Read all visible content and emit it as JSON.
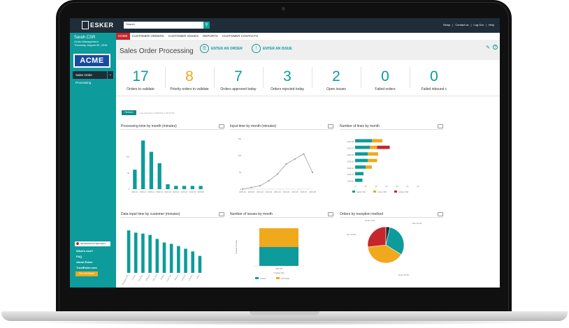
{
  "topbar": {
    "logo": "ESKER",
    "search_placeholder": "Search",
    "links": [
      "Setup",
      "Contact us",
      "Log Out",
      "Help"
    ]
  },
  "sidebar": {
    "user_name": "Sarah CSR",
    "role": "Order Management",
    "date": "Thursday, August 04, 2016",
    "company": "ACME",
    "selector": "Sales Order Processing",
    "infosec": "INFORMATION SECURITY",
    "links": [
      "What's new?",
      "FAQ",
      "About Esker",
      "TrustEsker.com"
    ],
    "feedback": "Give feedback"
  },
  "nav": {
    "tabs": [
      "HOME",
      "CUSTOMER ORDERS",
      "CUSTOMER ISSUES",
      "REPORTS",
      "CUSTOMER CONTACTS"
    ]
  },
  "header": {
    "title": "Sales Order Processing",
    "enter_order": "ENTER AN ORDER",
    "enter_issue": "ENTER AN ISSUE"
  },
  "kpis": [
    {
      "value": "17",
      "label": "Orders to validate",
      "color": "#0d9b9b"
    },
    {
      "value": "8",
      "label": "Priority orders to validate",
      "color": "#f0a81c"
    },
    {
      "value": "7",
      "label": "Orders approved today",
      "color": "#0d9b9b"
    },
    {
      "value": "3",
      "label": "Orders rejected today",
      "color": "#0d9b9b"
    },
    {
      "value": "2",
      "label": "Open issues",
      "color": "#0d9b9b"
    },
    {
      "value": "0",
      "label": "Failed orders",
      "color": "#0d9b9b"
    },
    {
      "value": "0",
      "label": "Failed inbound c",
      "color": "#0d9b9b"
    }
  ],
  "refresh": {
    "label": "Refresh",
    "last_refresh": "Last refreshed on 8/4/2016, 2:46:32 PM"
  },
  "chart_data": [
    {
      "type": "bar",
      "title": "Processing time by month (minutes)",
      "categories": [
        "2015-10",
        "2015-11",
        "2015-12",
        "2016-01",
        "2016-02",
        "2016-03",
        "2016-04",
        "2016-05",
        "2016-06"
      ],
      "values": [
        60,
        150,
        115,
        80,
        15,
        10,
        10,
        10,
        10
      ],
      "yticks": [
        0,
        50,
        100
      ],
      "ylim": [
        0,
        155
      ],
      "color": "#0d9b9b"
    },
    {
      "type": "line",
      "title": "Input time by month (minutes)",
      "categories": [
        "2015-12",
        "2016-01",
        "2016-02",
        "2016-03",
        "2016-04",
        "2016-05",
        "2016-06",
        "2016-07",
        "2016-08"
      ],
      "values": [
        0,
        5,
        10,
        25,
        45,
        75,
        90,
        105,
        50
      ],
      "yticks": [
        0,
        50,
        100,
        150
      ],
      "ylim": [
        0,
        150
      ],
      "color": "#9e9e9e"
    },
    {
      "type": "bar",
      "orientation": "horizontal",
      "stacked": true,
      "title": "Number of lines by month",
      "categories": [
        "2016-08",
        "2016-07",
        "2016-06",
        "2016-05",
        "2016-04",
        "2016-03",
        "2016-02"
      ],
      "series": [
        {
          "name": "Sarah CSR",
          "color": "#0d9b9b",
          "values": [
            16,
            14,
            12,
            12,
            10,
            8,
            7
          ]
        },
        {
          "name": "Julien CSR",
          "color": "#f0a81c",
          "values": [
            10,
            7,
            10,
            9,
            6,
            0,
            0
          ]
        },
        {
          "name": "Juliette CSR",
          "color": "#c7252c",
          "values": [
            0,
            12,
            0,
            0,
            0,
            0,
            0
          ]
        }
      ],
      "xticks": [
        0,
        10,
        20,
        30,
        40,
        50,
        60
      ],
      "xlim": [
        0,
        60
      ],
      "legend": "bottom"
    },
    {
      "type": "bar",
      "title": "Data input time by customer (minutes)",
      "categories": [
        "Shanghai Gifts",
        "CA Rec",
        "Asia Disc",
        "DiStanis",
        "SD Corp",
        "N Mkts",
        "Cont Pots",
        "Mdu Air",
        "Land Oil",
        "Lab Bus",
        "ATMC"
      ],
      "values": [
        95,
        90,
        88,
        85,
        76,
        68,
        65,
        60,
        54,
        48,
        38
      ],
      "ylim": [
        0,
        100
      ],
      "color": "#0d9b9b"
    },
    {
      "type": "bar",
      "stacked": true,
      "title": "Number of issues by month",
      "categories": [
        "2016-08"
      ],
      "series": [
        {
          "name": "Closed",
          "color": "#0d9b9b",
          "values": [
            1
          ]
        },
        {
          "name": "Not Ready",
          "color": "#f0a81c",
          "values": [
            1
          ]
        }
      ],
      "ylabel": "Number of issues",
      "xlabel": "Creation date",
      "ylim": [
        0,
        2
      ],
      "legend": "bottom"
    },
    {
      "type": "pie",
      "title": "Orders by reception method",
      "slices": [
        {
          "label": "EDI: 30.4%",
          "value": 30.4,
          "color": "#0d9b9b"
        },
        {
          "label": "Email: 39.3%",
          "value": 39.3,
          "color": "#f0a81c"
        },
        {
          "label": "Fax: 26.8%",
          "value": 26.8,
          "color": "#c7252c"
        },
        {
          "label": "Portal: 3.6%",
          "value": 3.6,
          "color": "#1f2d38"
        }
      ]
    }
  ]
}
